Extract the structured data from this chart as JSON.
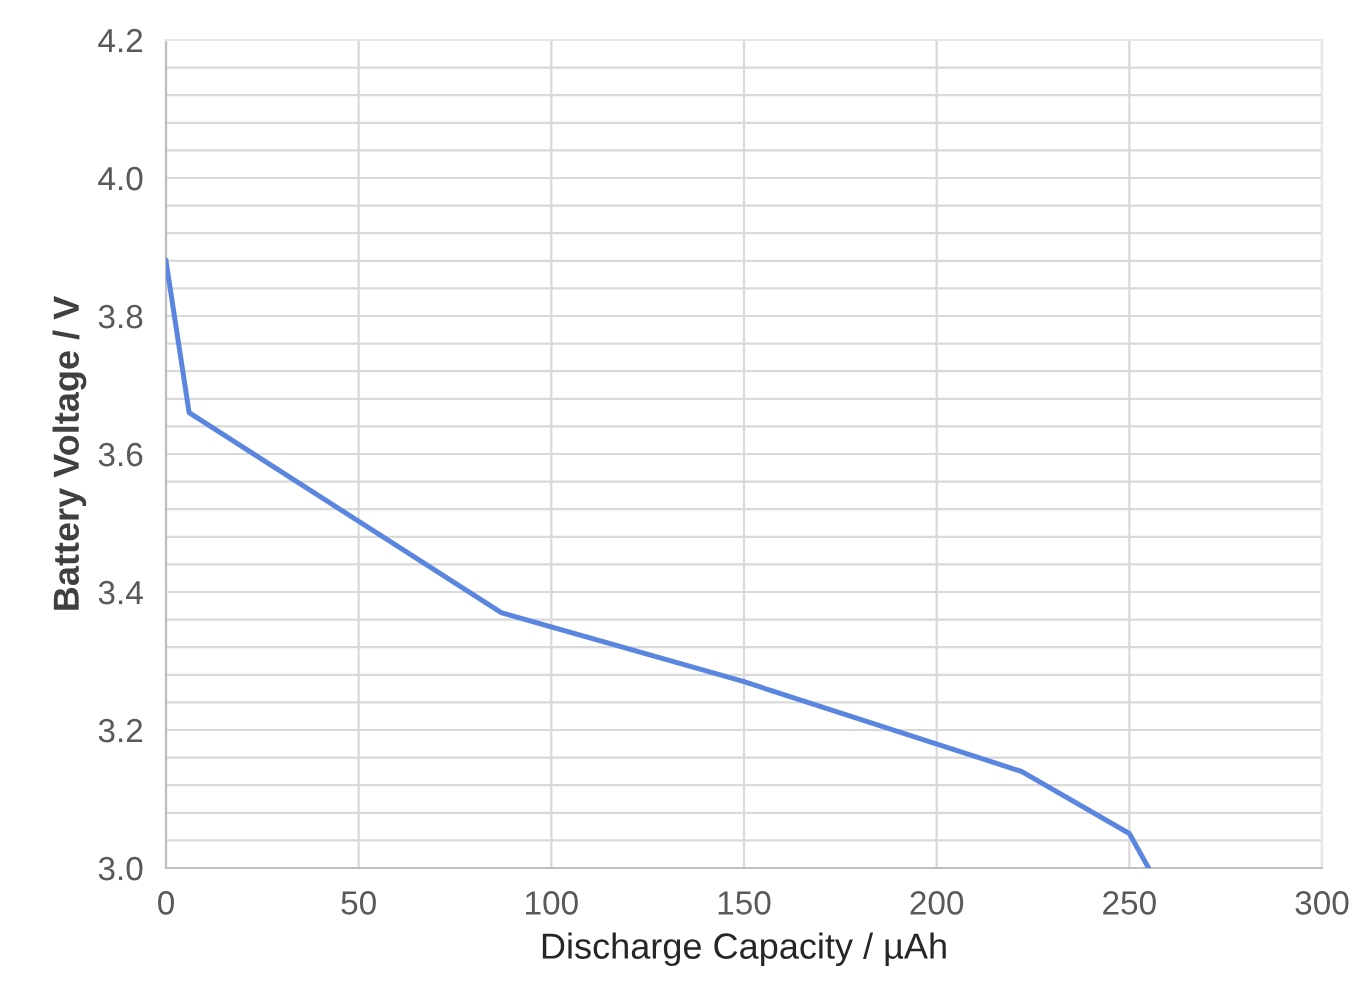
{
  "chart_data": {
    "type": "line",
    "xlabel": "Discharge Capacity / µAh",
    "ylabel": "Battery Voltage / V",
    "x": [
      0,
      6,
      87,
      150,
      222,
      250,
      255
    ],
    "series": [
      {
        "color": "#5b86e0",
        "values": [
          3.88,
          3.66,
          3.37,
          3.27,
          3.14,
          3.05,
          3.0
        ]
      }
    ],
    "xlim": [
      0,
      300
    ],
    "xticks": [
      0,
      50,
      100,
      150,
      200,
      250,
      300
    ],
    "ylim": [
      3.0,
      4.2
    ],
    "yticks": [
      {
        "value": 3.0,
        "label": "3.0"
      },
      {
        "value": 3.04,
        "label": null
      },
      {
        "value": 3.08,
        "label": null
      },
      {
        "value": 3.12,
        "label": null
      },
      {
        "value": 3.16,
        "label": null
      },
      {
        "value": 3.2,
        "label": "3.2"
      },
      {
        "value": 3.24,
        "label": null
      },
      {
        "value": 3.28,
        "label": null
      },
      {
        "value": 3.32,
        "label": null
      },
      {
        "value": 3.36,
        "label": null
      },
      {
        "value": 3.4,
        "label": "3.4"
      },
      {
        "value": 3.44,
        "label": null
      },
      {
        "value": 3.48,
        "label": null
      },
      {
        "value": 3.52,
        "label": null
      },
      {
        "value": 3.56,
        "label": null
      },
      {
        "value": 3.6,
        "label": "3.6"
      },
      {
        "value": 3.64,
        "label": null
      },
      {
        "value": 3.68,
        "label": null
      },
      {
        "value": 3.72,
        "label": null
      },
      {
        "value": 3.76,
        "label": null
      },
      {
        "value": 3.8,
        "label": "3.8"
      },
      {
        "value": 3.84,
        "label": null
      },
      {
        "value": 3.88,
        "label": null
      },
      {
        "value": 3.92,
        "label": null
      },
      {
        "value": 3.96,
        "label": null
      },
      {
        "value": 4.0,
        "label": "4.0"
      },
      {
        "value": 4.04,
        "label": null
      },
      {
        "value": 4.08,
        "label": null
      },
      {
        "value": 4.12,
        "label": null
      },
      {
        "value": 4.16,
        "label": null
      },
      {
        "value": 4.2,
        "label": "4.2"
      }
    ],
    "grid": true,
    "legend": false,
    "marker": "none",
    "line_style": "solid"
  }
}
